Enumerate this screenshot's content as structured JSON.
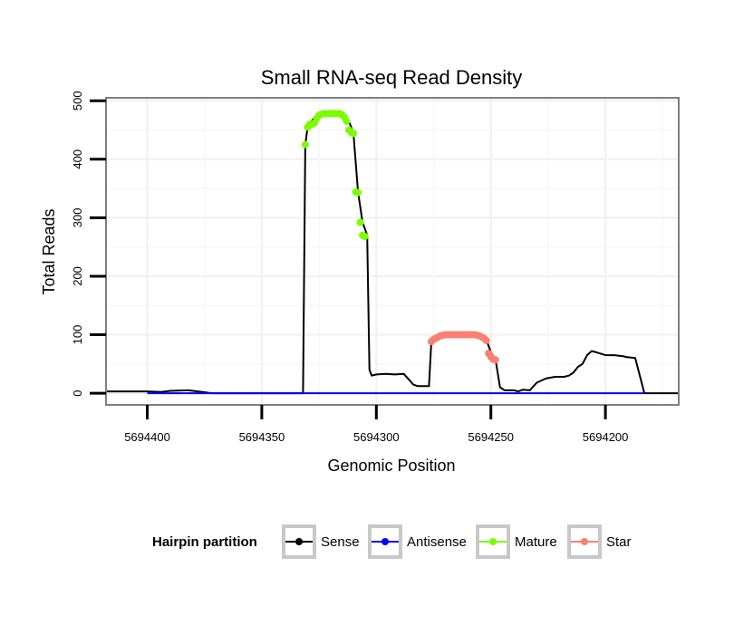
{
  "chart_data": {
    "type": "line",
    "title": "Small RNA-seq Read Density",
    "xlabel": "Genomic Position",
    "ylabel": "Total Reads",
    "x_reversed": true,
    "xlim": [
      5694418,
      5694168
    ],
    "ylim": [
      -20,
      505
    ],
    "x_ticks": [
      5694400,
      5694350,
      5694300,
      5694250,
      5694200
    ],
    "x_tick_labels": [
      "5694400",
      "5694350",
      "5694300",
      "5694250",
      "5694200"
    ],
    "y_ticks": [
      0,
      100,
      200,
      300,
      400,
      500
    ],
    "y_tick_labels": [
      "0",
      "100",
      "200",
      "300",
      "400",
      "500"
    ],
    "grid": true,
    "legend": {
      "title": "Hairpin partition",
      "position": "bottom",
      "entries": [
        {
          "name": "Sense",
          "color": "#000000"
        },
        {
          "name": "Antisense",
          "color": "#0000ff"
        },
        {
          "name": "Mature",
          "color": "#7cfc00"
        },
        {
          "name": "Star",
          "color": "#fa8072"
        }
      ]
    },
    "series": [
      {
        "name": "Sense",
        "color": "#000000",
        "x": [
          5694418,
          5694410,
          5694400,
          5694394,
          5694390,
          5694382,
          5694378,
          5694374,
          5694372,
          5694368,
          5694350,
          5694332,
          5694331,
          5694330,
          5694329,
          5694326,
          5694322,
          5694318,
          5694315,
          5694312,
          5694310,
          5694308,
          5694306,
          5694304,
          5694303,
          5694302,
          5694300,
          5694296,
          5694292,
          5694288,
          5694285,
          5694284,
          5694282,
          5694280,
          5694277,
          5694276,
          5694275,
          5694273,
          5694270,
          5694265,
          5694260,
          5694255,
          5694252,
          5694250,
          5694248,
          5694246,
          5694244,
          5694240,
          5694238,
          5694236,
          5694233,
          5694230,
          5694226,
          5694222,
          5694218,
          5694216,
          5694214,
          5694212,
          5694210,
          5694208,
          5694206,
          5694204,
          5694200,
          5694196,
          5694192,
          5694191,
          5694187,
          5694183,
          5694168
        ],
        "y": [
          3,
          3,
          3,
          2,
          4,
          5,
          3,
          1,
          0,
          0,
          0,
          0,
          425,
          455,
          462,
          475,
          478,
          478,
          475,
          465,
          445,
          344,
          292,
          270,
          40,
          30,
          32,
          33,
          32,
          33,
          20,
          15,
          12,
          12,
          12,
          88,
          92,
          98,
          100,
          100,
          100,
          98,
          92,
          70,
          58,
          10,
          5,
          5,
          3,
          6,
          5,
          18,
          25,
          28,
          28,
          30,
          35,
          45,
          50,
          65,
          72,
          70,
          65,
          65,
          63,
          62,
          60,
          0,
          0
        ]
      },
      {
        "name": "Antisense",
        "color": "#0000ff",
        "x": [
          5694400,
          5694183
        ],
        "y": [
          0,
          0
        ]
      },
      {
        "name": "Mature",
        "color": "#7cfc00",
        "x": [
          5694331,
          5694330,
          5694329.5,
          5694329,
          5694328,
          5694327,
          5694326,
          5694325,
          5694324,
          5694323,
          5694322,
          5694321,
          5694320,
          5694319,
          5694318,
          5694317,
          5694316,
          5694315,
          5694314,
          5694313,
          5694312,
          5694311,
          5694310,
          5694309,
          5694308,
          5694307,
          5694306,
          5694305
        ],
        "y": [
          425,
          455,
          457,
          460,
          460,
          462,
          470,
          475,
          477,
          478,
          478,
          478,
          478,
          478,
          478,
          478,
          478,
          476,
          472,
          465,
          450,
          446,
          444,
          344,
          343,
          292,
          270,
          268
        ]
      },
      {
        "name": "Star",
        "color": "#fa8072",
        "x": [
          5694276,
          5694275,
          5694274,
          5694273,
          5694272,
          5694271,
          5694270,
          5694269,
          5694268,
          5694267,
          5694266,
          5694265,
          5694264,
          5694263,
          5694262,
          5694261,
          5694260,
          5694259,
          5694258,
          5694257,
          5694256,
          5694255,
          5694254,
          5694253,
          5694252,
          5694251,
          5694250,
          5694249,
          5694248
        ],
        "y": [
          88,
          92,
          94,
          96,
          98,
          99,
          100,
          100,
          100,
          100,
          100,
          100,
          100,
          100,
          100,
          100,
          100,
          100,
          100,
          100,
          99,
          98,
          96,
          94,
          90,
          68,
          62,
          58,
          57
        ]
      }
    ]
  }
}
